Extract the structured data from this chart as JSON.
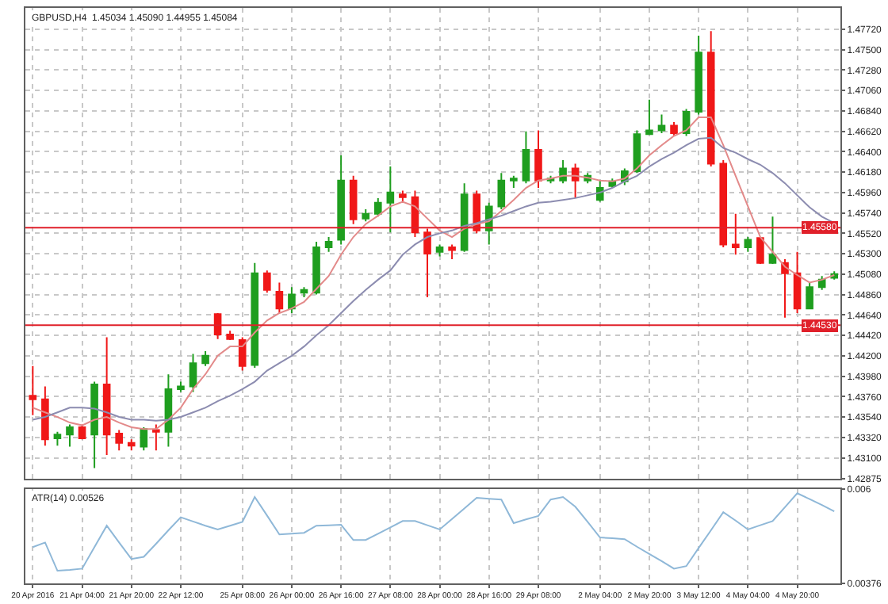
{
  "chart_data": [
    {
      "type": "candlestick",
      "title": "GBPUSD,H4  1.45034 1.45090 1.44955 1.45084",
      "categories": [
        null,
        null,
        null,
        null,
        null,
        null,
        null,
        null,
        null,
        null,
        null,
        null,
        null,
        null,
        null,
        null,
        null,
        null,
        null,
        null,
        null,
        null,
        null,
        null,
        null,
        null,
        null,
        null,
        null,
        null,
        null,
        null,
        null,
        null,
        null,
        null,
        null,
        null,
        null,
        null,
        null,
        null,
        null,
        null,
        null,
        null,
        null,
        null,
        null,
        null,
        null,
        null,
        null,
        null,
        null,
        null,
        null,
        null,
        null,
        null,
        null,
        null,
        null,
        null,
        null,
        null
      ],
      "ohlc": [
        [
          1.4377,
          1.4409,
          1.4356,
          1.4373
        ],
        [
          1.4373,
          1.4387,
          1.4323,
          1.433
        ],
        [
          1.4331,
          1.4338,
          1.4323,
          1.4335
        ],
        [
          1.4335,
          1.4346,
          1.4322,
          1.4343
        ],
        [
          1.4343,
          1.4346,
          1.433,
          1.4331
        ],
        [
          1.4335,
          1.4392,
          1.4299,
          1.4389
        ],
        [
          1.4389,
          1.444,
          1.4313,
          1.4335
        ],
        [
          1.4336,
          1.434,
          1.4318,
          1.4326
        ],
        [
          1.4326,
          1.433,
          1.4318,
          1.4323
        ],
        [
          1.4322,
          1.4343,
          1.4318,
          1.4341
        ],
        [
          1.434,
          1.4346,
          1.4318,
          1.4338
        ],
        [
          1.4338,
          1.44,
          1.4322,
          1.4384
        ],
        [
          1.4384,
          1.4392,
          1.4381,
          1.4387
        ],
        [
          1.4387,
          1.4422,
          1.4381,
          1.4412
        ],
        [
          1.4412,
          1.4425,
          1.4409,
          1.442
        ],
        [
          1.4465,
          1.4466,
          1.4438,
          1.4443
        ],
        [
          1.4443,
          1.4447,
          1.4437,
          1.4438
        ],
        [
          1.4437,
          1.444,
          1.4404,
          1.4409
        ],
        [
          1.441,
          1.452,
          1.4407,
          1.4509
        ],
        [
          1.4509,
          1.4512,
          1.4488,
          1.4491
        ],
        [
          1.4489,
          1.4499,
          1.4466,
          1.4471
        ],
        [
          1.4471,
          1.4494,
          1.4466,
          1.4486
        ],
        [
          1.4488,
          1.4494,
          1.4483,
          1.4491
        ],
        [
          1.4488,
          1.4543,
          1.4486,
          1.4537
        ],
        [
          1.4537,
          1.4548,
          1.4532,
          1.4543
        ],
        [
          1.4545,
          1.4636,
          1.454,
          1.4609
        ],
        [
          1.4609,
          1.4614,
          1.4562,
          1.4567
        ],
        [
          1.4568,
          1.4578,
          1.4565,
          1.4573
        ],
        [
          1.4573,
          1.459,
          1.457,
          1.4585
        ],
        [
          1.4585,
          1.4624,
          1.4553,
          1.4596
        ],
        [
          1.4594,
          1.4598,
          1.4585,
          1.4591
        ],
        [
          1.4591,
          1.4598,
          1.4548,
          1.4553
        ],
        [
          1.4553,
          1.4557,
          1.4483,
          1.453
        ],
        [
          1.4532,
          1.454,
          1.4527,
          1.4537
        ],
        [
          1.4537,
          1.454,
          1.4524,
          1.4534
        ],
        [
          1.4534,
          1.4606,
          1.4532,
          1.4594
        ],
        [
          1.4594,
          1.4598,
          1.4552,
          1.4555
        ],
        [
          1.4555,
          1.4585,
          1.454,
          1.4581
        ],
        [
          1.4581,
          1.4617,
          1.4578,
          1.4609
        ],
        [
          1.4609,
          1.4614,
          1.4601,
          1.4611
        ],
        [
          1.4609,
          1.4662,
          1.4606,
          1.4642
        ],
        [
          1.4642,
          1.4663,
          1.4601,
          1.4609
        ],
        [
          1.4609,
          1.4614,
          1.4606,
          1.4611
        ],
        [
          1.4609,
          1.4631,
          1.4606,
          1.4622
        ],
        [
          1.4622,
          1.4627,
          1.459,
          1.4609
        ],
        [
          1.4609,
          1.4617,
          1.4606,
          1.4614
        ],
        [
          1.4588,
          1.4609,
          1.4586,
          1.4601
        ],
        [
          1.4603,
          1.4611,
          1.4601,
          1.4608
        ],
        [
          1.4608,
          1.4622,
          1.4604,
          1.4619
        ],
        [
          1.4619,
          1.4663,
          1.4617,
          1.4659
        ],
        [
          1.4659,
          1.4696,
          1.4659,
          1.4663
        ],
        [
          1.4663,
          1.468,
          1.466,
          1.4668
        ],
        [
          1.4668,
          1.4672,
          1.4657,
          1.466
        ],
        [
          1.466,
          1.4686,
          1.4657,
          1.4683
        ],
        [
          1.4683,
          1.4765,
          1.468,
          1.4747
        ],
        [
          1.4747,
          1.477,
          1.4624,
          1.4627
        ],
        [
          1.4627,
          1.4631,
          1.4537,
          1.454
        ],
        [
          1.454,
          1.4573,
          1.4529,
          1.4537
        ],
        [
          1.4537,
          1.4548,
          1.4532,
          1.4545
        ],
        [
          1.4547,
          1.4548,
          1.4519,
          1.452
        ],
        [
          1.452,
          1.457,
          1.4519,
          1.4529
        ],
        [
          1.452,
          1.4524,
          1.4461,
          1.4509
        ],
        [
          1.4509,
          1.4532,
          1.4466,
          1.4471
        ],
        [
          1.4471,
          1.4499,
          1.447,
          1.4494
        ],
        [
          1.4494,
          1.4506,
          1.4491,
          1.4502
        ],
        [
          1.4504,
          1.4511,
          1.4502,
          1.4508
        ]
      ],
      "colors": [
        "#f01818",
        "#f01818",
        "#1f9e1f",
        "#1f9e1f",
        "#f01818",
        "#1f9e1f",
        "#f01818",
        "#f01818",
        "#f01818",
        "#1f9e1f",
        "#f01818",
        "#1f9e1f",
        "#1f9e1f",
        "#1f9e1f",
        "#1f9e1f",
        "#f01818",
        "#f01818",
        "#f01818",
        "#1f9e1f",
        "#f01818",
        "#f01818",
        "#1f9e1f",
        "#1f9e1f",
        "#1f9e1f",
        "#1f9e1f",
        "#1f9e1f",
        "#f01818",
        "#1f9e1f",
        "#1f9e1f",
        "#1f9e1f",
        "#f01818",
        "#f01818",
        "#f01818",
        "#1f9e1f",
        "#f01818",
        "#1f9e1f",
        "#f01818",
        "#1f9e1f",
        "#1f9e1f",
        "#1f9e1f",
        "#1f9e1f",
        "#f01818",
        "#1f9e1f",
        "#1f9e1f",
        "#f01818",
        "#1f9e1f",
        "#1f9e1f",
        "#1f9e1f",
        "#1f9e1f",
        "#1f9e1f",
        "#1f9e1f",
        "#1f9e1f",
        "#f01818",
        "#1f9e1f",
        "#1f9e1f",
        "#f01818",
        "#f01818",
        "#f01818",
        "#1f9e1f",
        "#f01818",
        "#1f9e1f",
        "#f01818",
        "#f01818",
        "#1f9e1f",
        "#1f9e1f",
        "#1f9e1f"
      ],
      "series": [
        {
          "type": "line",
          "color": "#e38a8a",
          "values": [
            1.4364,
            1.4359,
            1.4354,
            1.4348,
            1.4345,
            1.4351,
            1.4354,
            1.4348,
            1.4343,
            1.4341,
            1.4341,
            1.4351,
            1.4364,
            1.4384,
            1.44,
            1.442,
            1.443,
            1.443,
            1.4445,
            1.4458,
            1.4466,
            1.4471,
            1.4478,
            1.4492,
            1.4506,
            1.4529,
            1.4548,
            1.4562,
            1.4571,
            1.4581,
            1.4586,
            1.4581,
            1.4568,
            1.4555,
            1.4548,
            1.4557,
            1.4562,
            1.4565,
            1.4576,
            1.4588,
            1.4601,
            1.4609,
            1.4611,
            1.4614,
            1.4614,
            1.4612,
            1.4609,
            1.4608,
            1.4611,
            1.4622,
            1.4636,
            1.4647,
            1.4657,
            1.4663,
            1.4677,
            1.4677,
            1.4647,
            1.4614,
            1.4581,
            1.4548,
            1.4532,
            1.4516,
            1.4507,
            1.4499,
            1.4502,
            1.4507
          ]
        },
        {
          "type": "line",
          "color": "#8c8cb0",
          "values": [
            1.4351,
            1.4354,
            1.4359,
            1.4364,
            1.4364,
            1.4363,
            1.4359,
            1.4354,
            1.4351,
            1.4351,
            1.435,
            1.4351,
            1.4354,
            1.4359,
            1.4364,
            1.4371,
            1.4377,
            1.4384,
            1.4392,
            1.4404,
            1.4412,
            1.442,
            1.443,
            1.4442,
            1.4453,
            1.4466,
            1.4479,
            1.4491,
            1.4502,
            1.4512,
            1.4529,
            1.454,
            1.4548,
            1.4552,
            1.4555,
            1.456,
            1.4563,
            1.4567,
            1.4571,
            1.4576,
            1.4581,
            1.4585,
            1.4586,
            1.4588,
            1.459,
            1.4593,
            1.4596,
            1.4601,
            1.4608,
            1.4614,
            1.4624,
            1.4632,
            1.4639,
            1.4647,
            1.4654,
            1.4655,
            1.4644,
            1.4639,
            1.4632,
            1.4626,
            1.4617,
            1.4606,
            1.4593,
            1.458,
            1.457,
            1.4563
          ]
        }
      ],
      "ylim": [
        1.42875,
        1.4795
      ],
      "yticks": [
        {
          "value": 1.42875,
          "label": "1.42875"
        },
        {
          "value": 1.431,
          "label": "1.43100"
        },
        {
          "value": 1.4332,
          "label": "1.43320"
        },
        {
          "value": 1.4354,
          "label": "1.43540"
        },
        {
          "value": 1.4376,
          "label": "1.43760"
        },
        {
          "value": 1.4398,
          "label": "1.43980"
        },
        {
          "value": 1.442,
          "label": "1.44200"
        },
        {
          "value": 1.4442,
          "label": "1.44420"
        },
        {
          "value": 1.4464,
          "label": "1.44640"
        },
        {
          "value": 1.4486,
          "label": "1.44860"
        },
        {
          "value": 1.4508,
          "label": "1.45080"
        },
        {
          "value": 1.453,
          "label": "1.45300"
        },
        {
          "value": 1.4552,
          "label": "1.45520"
        },
        {
          "value": 1.4574,
          "label": "1.45740"
        },
        {
          "value": 1.4596,
          "label": "1.45960"
        },
        {
          "value": 1.4618,
          "label": "1.46180"
        },
        {
          "value": 1.464,
          "label": "1.46400"
        },
        {
          "value": 1.4662,
          "label": "1.46620"
        },
        {
          "value": 1.4684,
          "label": "1.46840"
        },
        {
          "value": 1.4706,
          "label": "1.47060"
        },
        {
          "value": 1.4728,
          "label": "1.47280"
        },
        {
          "value": 1.475,
          "label": "1.47500"
        },
        {
          "value": 1.4772,
          "label": "1.47720"
        }
      ],
      "ref_lines": [
        {
          "axis": "y",
          "value": 1.4558,
          "label": "1.45580",
          "color": "#e0202a"
        },
        {
          "axis": "y",
          "value": 1.4453,
          "label": "1.44530",
          "color": "#e0202a"
        }
      ],
      "grid": true,
      "tick_labels": "y"
    },
    {
      "type": "line",
      "title": "ATR(14) 0.00526",
      "categories": [
        "20 Apr 2016",
        null,
        null,
        null,
        "21 Apr 04:00",
        null,
        null,
        null,
        "21 Apr 20:00",
        null,
        null,
        null,
        "22 Apr 12:00",
        null,
        null,
        null,
        null,
        "25 Apr 08:00",
        null,
        null,
        null,
        "26 Apr 00:00",
        null,
        null,
        null,
        "26 Apr 16:00",
        null,
        null,
        null,
        "27 Apr 08:00",
        null,
        null,
        null,
        "28 Apr 00:00",
        null,
        null,
        null,
        "28 Apr 16:00",
        null,
        null,
        null,
        "29 Apr 08:00",
        null,
        null,
        null,
        null,
        "2 May 04:00",
        null,
        null,
        null,
        "2 May 20:00",
        null,
        null,
        null,
        "3 May 12:00",
        null,
        null,
        null,
        "4 May 04:00",
        null,
        null,
        null,
        "4 May 20:00",
        null,
        null,
        null
      ],
      "series": [
        {
          "color": "#8fb8d8",
          "values": [
            0.00462,
            0.00473,
            0.00406,
            0.00408,
            0.00411,
            0.00462,
            0.00513,
            0.00473,
            0.00434,
            0.00439,
            0.0047,
            0.00502,
            0.00533,
            0.00523,
            0.00513,
            0.00504,
            0.00513,
            0.00522,
            0.00581,
            0.00537,
            0.00492,
            0.00494,
            0.00496,
            0.00513,
            0.00514,
            0.00515,
            0.00479,
            0.00479,
            0.00494,
            0.00509,
            0.00524,
            0.00524,
            0.00514,
            0.00504,
            0.00529,
            0.00554,
            0.00579,
            0.00577,
            0.00575,
            0.00519,
            0.00528,
            0.00536,
            0.00575,
            0.00581,
            0.00558,
            0.00522,
            0.00485,
            0.00483,
            0.00481,
            0.00463,
            0.00446,
            0.00429,
            0.00411,
            0.00417,
            0.0046,
            0.00502,
            0.00545,
            0.00525,
            0.00504,
            0.00514,
            0.00524,
            0.00557,
            0.0059,
            0.00576,
            0.00562,
            0.00547
          ]
        }
      ],
      "ylim": [
        0.00376,
        0.006
      ],
      "yticks": [
        0.006,
        0.00376
      ],
      "grid": "x"
    }
  ]
}
